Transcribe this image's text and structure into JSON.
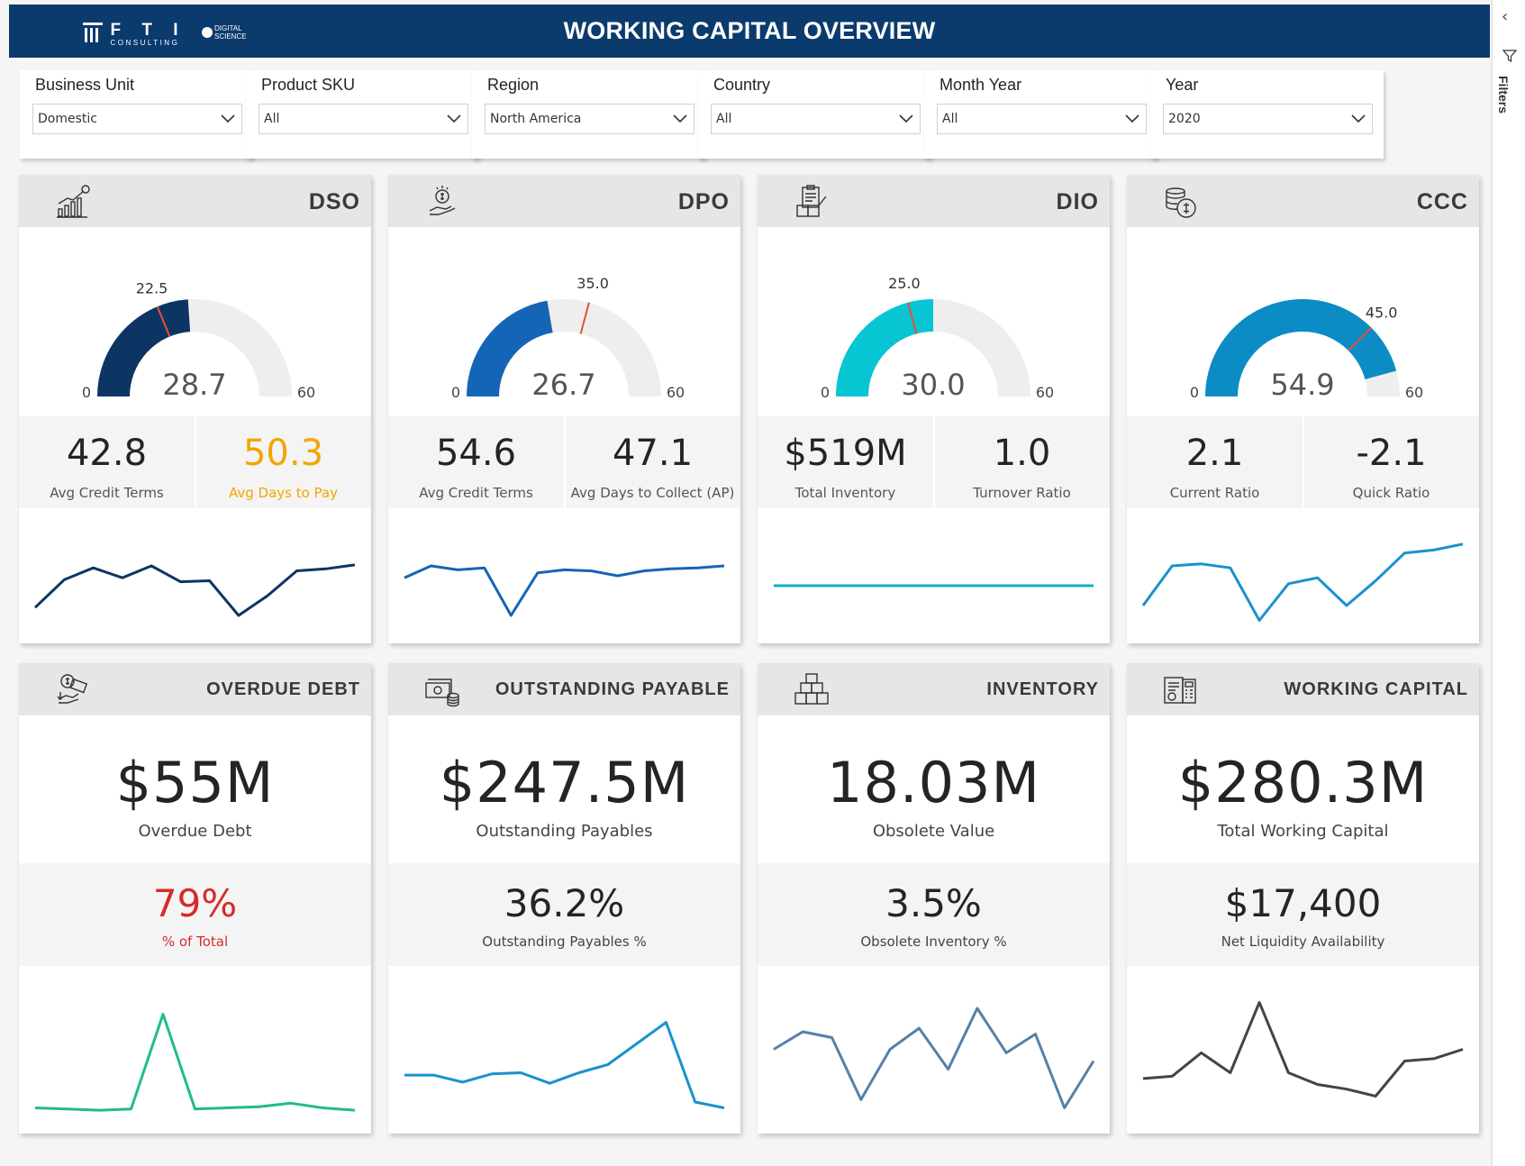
{
  "header": {
    "title": "WORKING CAPITAL OVERVIEW",
    "logo_fti": "F T I",
    "logo_fti_sub": "CONSULTING",
    "logo_ds": "DIGITAL SCIENCE"
  },
  "filters": [
    {
      "label": "Business Unit",
      "value": "Domestic"
    },
    {
      "label": "Product SKU",
      "value": "All"
    },
    {
      "label": "Region",
      "value": "North America"
    },
    {
      "label": "Country",
      "value": "All"
    },
    {
      "label": "Month Year",
      "value": "All"
    },
    {
      "label": "Year",
      "value": "2020"
    }
  ],
  "filters_pane": {
    "label": "Filters"
  },
  "colors": {
    "header": "#0b3a6d",
    "dso": "#0d3563",
    "dpo": "#1565b6",
    "dio": "#08c5d3",
    "ccc": "#0b8cc4",
    "target": "#e0543a",
    "overdue_spark": "#1fbf7f",
    "payable_spark": "#1a92cc",
    "inventory_spark": "#5581a8",
    "wc_spark": "#444444",
    "warning": "#f4a500",
    "alert": "#d62b2b"
  },
  "kpis": [
    {
      "id": "dso",
      "title": "DSO",
      "icon": "chart-growth-icon",
      "gauge": {
        "value": 28.7,
        "value_label": "28.7",
        "target": 22.5,
        "target_label": "22.5",
        "min": 0,
        "max": 60,
        "min_label": "0",
        "max_label": "60"
      },
      "stats": [
        {
          "value": "42.8",
          "label": "Avg Credit Terms"
        },
        {
          "value": "50.3",
          "label": "Avg Days to Pay"
        }
      ],
      "spark": [
        0.18,
        0.46,
        0.58,
        0.48,
        0.6,
        0.44,
        0.45,
        0.1,
        0.3,
        0.55,
        0.57,
        0.61
      ]
    },
    {
      "id": "dpo",
      "title": "DPO",
      "icon": "hand-coin-icon",
      "gauge": {
        "value": 26.7,
        "value_label": "26.7",
        "target": 35.0,
        "target_label": "35.0",
        "min": 0,
        "max": 60,
        "min_label": "0",
        "max_label": "60"
      },
      "stats": [
        {
          "value": "54.6",
          "label": "Avg Credit Terms"
        },
        {
          "value": "47.1",
          "label": "Avg Days to Collect (AP)"
        }
      ],
      "spark": [
        0.48,
        0.6,
        0.56,
        0.58,
        0.1,
        0.53,
        0.56,
        0.55,
        0.5,
        0.55,
        0.57,
        0.58,
        0.6
      ]
    },
    {
      "id": "dio",
      "title": "DIO",
      "icon": "inventory-clipboard-icon",
      "gauge": {
        "value": 30.0,
        "value_label": "30.0",
        "target": 25.0,
        "target_label": "25.0",
        "min": 0,
        "max": 60,
        "min_label": "0",
        "max_label": "60"
      },
      "stats": [
        {
          "value": "$519M",
          "label": "Total Inventory"
        },
        {
          "value": "1.0",
          "label": "Turnover Ratio"
        }
      ],
      "spark": [
        0.4,
        0.4,
        0.4,
        0.4,
        0.4,
        0.4,
        0.4,
        0.4,
        0.4,
        0.4,
        0.4,
        0.4
      ]
    },
    {
      "id": "ccc",
      "title": "CCC",
      "icon": "coin-stack-icon",
      "gauge": {
        "value": 54.9,
        "value_label": "54.9",
        "target": 45.0,
        "target_label": "45.0",
        "min": 0,
        "max": 60,
        "min_label": "0",
        "max_label": "60"
      },
      "stats": [
        {
          "value": "2.1",
          "label": "Current Ratio"
        },
        {
          "value": "-2.1",
          "label": "Quick Ratio"
        }
      ],
      "spark": [
        0.2,
        0.6,
        0.62,
        0.58,
        0.05,
        0.42,
        0.48,
        0.2,
        0.45,
        0.73,
        0.76,
        0.82
      ]
    }
  ],
  "summaries": [
    {
      "id": "overdue",
      "title": "OVERDUE DEBT",
      "icon": "debt-hand-icon",
      "big_value": "$55M",
      "big_label": "Overdue Debt",
      "mid_value": "79%",
      "mid_label": "% of Total",
      "mid_color": "#d62b2b",
      "spark": [
        0.05,
        0.04,
        0.03,
        0.04,
        0.85,
        0.04,
        0.05,
        0.06,
        0.09,
        0.05,
        0.03
      ]
    },
    {
      "id": "payable",
      "title": "OUTSTANDING PAYABLE",
      "icon": "cash-coins-icon",
      "big_value": "$247.5M",
      "big_label": "Outstanding Payables",
      "mid_value": "36.2%",
      "mid_label": "Outstanding Payables %",
      "mid_color": "#252423",
      "spark": [
        0.33,
        0.33,
        0.27,
        0.34,
        0.35,
        0.26,
        0.35,
        0.42,
        0.6,
        0.78,
        0.1,
        0.05
      ]
    },
    {
      "id": "inventory",
      "title": "INVENTORY",
      "icon": "boxes-icon",
      "big_value": "18.03M",
      "big_label": "Obsolete Value",
      "mid_value": "3.5%",
      "mid_label": "Obsolete Inventory %",
      "mid_color": "#252423",
      "spark": [
        0.55,
        0.7,
        0.65,
        0.12,
        0.55,
        0.73,
        0.38,
        0.9,
        0.52,
        0.68,
        0.05,
        0.45
      ]
    },
    {
      "id": "wc",
      "title": "WORKING CAPITAL",
      "icon": "calculator-doc-icon",
      "big_value": "$280.3M",
      "big_label": "Total Working Capital",
      "mid_value": "$17,400",
      "mid_label": "Net Liquidity Availability",
      "mid_color": "#252423",
      "spark": [
        0.3,
        0.32,
        0.52,
        0.35,
        0.95,
        0.35,
        0.25,
        0.21,
        0.15,
        0.45,
        0.47,
        0.55
      ]
    }
  ]
}
